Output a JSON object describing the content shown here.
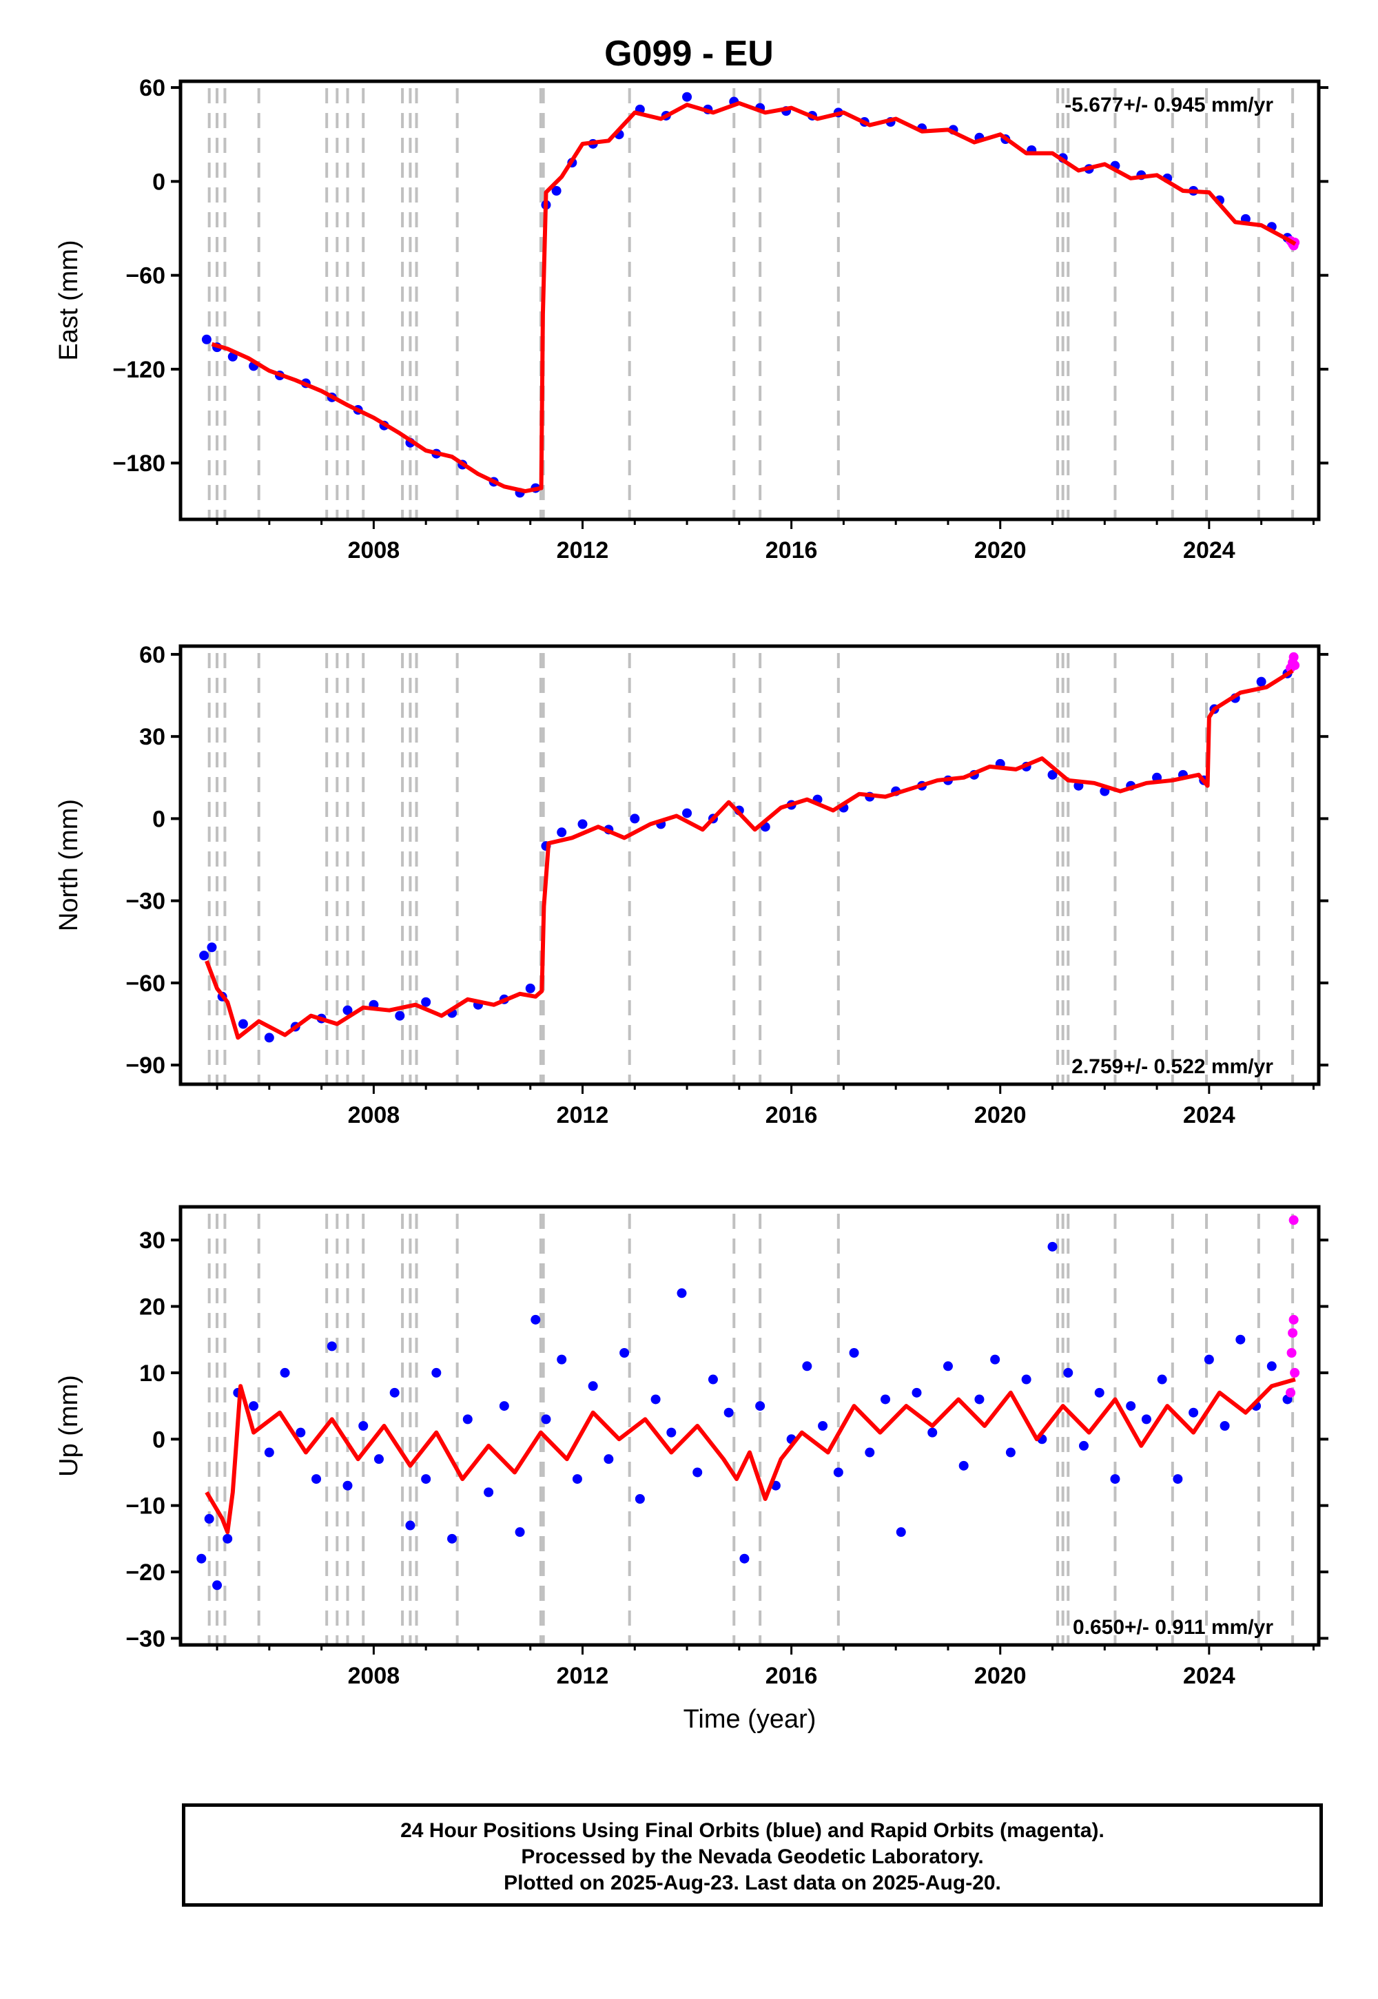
{
  "figure": {
    "title": "G099 - EU",
    "footer_lines": [
      "24 Hour Positions Using Final Orbits (blue) and Rapid Orbits (magenta).",
      "Processed by the Nevada Geodetic Laboratory.",
      "Plotted on 2025-Aug-23. Last data on 2025-Aug-20."
    ],
    "colors": {
      "final_orbits": "#0000ff",
      "rapid_orbits": "#ff00ff",
      "model_fit": "#ff0000",
      "event_lines": "#c0c0c0"
    }
  },
  "chart_data": [
    {
      "type": "scatter",
      "panel": "east",
      "ylabel": "East (mm)",
      "xlim": [
        2004.3,
        2026.1
      ],
      "ylim": [
        -216,
        64
      ],
      "yticks": [
        60,
        0,
        -60,
        -120,
        -180
      ],
      "xticks": [
        2008,
        2012,
        2016,
        2020,
        2024
      ],
      "rate_label": "-5.677+/- 0.945 mm/yr",
      "fit_series": {
        "x": [
          2004.9,
          2005.2,
          2005.6,
          2006.0,
          2006.5,
          2007.0,
          2007.5,
          2008.0,
          2008.5,
          2009.0,
          2009.5,
          2010.0,
          2010.5,
          2010.9,
          2011.21,
          2011.24,
          2011.3,
          2011.6,
          2012.0,
          2012.5,
          2013.0,
          2013.5,
          2014.0,
          2014.5,
          2015.0,
          2015.5,
          2016.0,
          2016.5,
          2017.0,
          2017.5,
          2018.0,
          2018.5,
          2019.0,
          2019.5,
          2020.0,
          2020.5,
          2021.0,
          2021.5,
          2022.0,
          2022.5,
          2023.0,
          2023.5,
          2024.0,
          2024.5,
          2025.0,
          2025.5,
          2025.65
        ],
        "y": [
          -104,
          -107,
          -113,
          -121,
          -127,
          -134,
          -143,
          -151,
          -161,
          -172,
          -176,
          -187,
          -195,
          -198,
          -196,
          -85,
          -7,
          3,
          24,
          26,
          44,
          40,
          49,
          44,
          50,
          44,
          47,
          40,
          44,
          36,
          40,
          32,
          33,
          25,
          30,
          18,
          18,
          7,
          11,
          2,
          4,
          -6,
          -7,
          -26,
          -28,
          -37,
          -40
        ]
      },
      "final_series": {
        "x": [
          2004.8,
          2005.0,
          2005.3,
          2005.7,
          2006.2,
          2006.7,
          2007.2,
          2007.7,
          2008.2,
          2008.7,
          2009.2,
          2009.7,
          2010.3,
          2010.8,
          2011.1,
          2011.3,
          2011.5,
          2011.8,
          2012.2,
          2012.7,
          2013.1,
          2013.6,
          2014.0,
          2014.4,
          2014.9,
          2015.4,
          2015.9,
          2016.4,
          2016.9,
          2017.4,
          2017.9,
          2018.5,
          2019.1,
          2019.6,
          2020.1,
          2020.6,
          2021.2,
          2021.7,
          2022.2,
          2022.7,
          2023.2,
          2023.7,
          2024.2,
          2024.7,
          2025.2,
          2025.5
        ],
        "y": [
          -101,
          -106,
          -112,
          -118,
          -124,
          -129,
          -138,
          -146,
          -156,
          -167,
          -174,
          -181,
          -192,
          -199,
          -196,
          -15,
          -6,
          12,
          24,
          30,
          46,
          42,
          54,
          46,
          51,
          47,
          45,
          42,
          44,
          38,
          38,
          34,
          33,
          28,
          27,
          20,
          15,
          8,
          10,
          4,
          2,
          -6,
          -12,
          -24,
          -29,
          -36
        ]
      },
      "rapid_series": {
        "x": [
          2025.56,
          2025.6,
          2025.62,
          2025.64
        ],
        "y": [
          -38,
          -40,
          -41,
          -39
        ]
      }
    },
    {
      "type": "scatter",
      "panel": "north",
      "ylabel": "North (mm)",
      "xlim": [
        2004.3,
        2026.1
      ],
      "ylim": [
        -97,
        63
      ],
      "yticks": [
        60,
        30,
        0,
        -30,
        -60,
        -90
      ],
      "xticks": [
        2008,
        2012,
        2016,
        2020,
        2024
      ],
      "rate_label": "2.759+/- 0.522 mm/yr",
      "fit_series": {
        "x": [
          2004.8,
          2005.0,
          2005.2,
          2005.4,
          2005.8,
          2006.3,
          2006.8,
          2007.3,
          2007.8,
          2008.3,
          2008.8,
          2009.3,
          2009.8,
          2010.3,
          2010.8,
          2011.1,
          2011.22,
          2011.26,
          2011.35,
          2011.8,
          2012.3,
          2012.8,
          2013.3,
          2013.8,
          2014.3,
          2014.8,
          2015.3,
          2015.8,
          2016.3,
          2016.8,
          2017.3,
          2017.8,
          2018.3,
          2018.8,
          2019.3,
          2019.8,
          2020.3,
          2020.8,
          2021.3,
          2021.8,
          2022.3,
          2022.8,
          2023.3,
          2023.8,
          2023.97,
          2024.0,
          2024.1,
          2024.6,
          2025.1,
          2025.6
        ],
        "y": [
          -52,
          -62,
          -67,
          -80,
          -74,
          -79,
          -72,
          -75,
          -69,
          -70,
          -68,
          -72,
          -66,
          -68,
          -64,
          -65,
          -63,
          -32,
          -9,
          -7,
          -3,
          -7,
          -2,
          1,
          -4,
          6,
          -4,
          4,
          7,
          3,
          9,
          8,
          11,
          14,
          15,
          19,
          18,
          22,
          14,
          13,
          10,
          13,
          14,
          16,
          12,
          37,
          40,
          46,
          48,
          54
        ]
      },
      "final_series": {
        "x": [
          2004.75,
          2004.9,
          2005.1,
          2005.5,
          2006.0,
          2006.5,
          2007.0,
          2007.5,
          2008.0,
          2008.5,
          2009.0,
          2009.5,
          2010.0,
          2010.5,
          2011.0,
          2011.3,
          2011.6,
          2012.0,
          2012.5,
          2013.0,
          2013.5,
          2014.0,
          2014.5,
          2015.0,
          2015.5,
          2016.0,
          2016.5,
          2017.0,
          2017.5,
          2018.0,
          2018.5,
          2019.0,
          2019.5,
          2020.0,
          2020.5,
          2021.0,
          2021.5,
          2022.0,
          2022.5,
          2023.0,
          2023.5,
          2023.9,
          2024.1,
          2024.5,
          2025.0,
          2025.5
        ],
        "y": [
          -50,
          -47,
          -65,
          -75,
          -80,
          -76,
          -73,
          -70,
          -68,
          -72,
          -67,
          -71,
          -68,
          -66,
          -62,
          -10,
          -5,
          -2,
          -4,
          0,
          -2,
          2,
          0,
          3,
          -3,
          5,
          7,
          4,
          8,
          10,
          12,
          14,
          16,
          20,
          19,
          16,
          12,
          10,
          12,
          15,
          16,
          14,
          40,
          44,
          50,
          53
        ]
      },
      "rapid_series": {
        "x": [
          2025.56,
          2025.6,
          2025.62,
          2025.64
        ],
        "y": [
          55,
          57,
          59,
          56
        ]
      }
    },
    {
      "type": "scatter",
      "panel": "up",
      "ylabel": "Up (mm)",
      "xlabel": "Time (year)",
      "xlim": [
        2004.3,
        2026.1
      ],
      "ylim": [
        -31,
        35
      ],
      "yticks": [
        30,
        20,
        10,
        0,
        -10,
        -20,
        -30
      ],
      "xticks": [
        2008,
        2012,
        2016,
        2020,
        2024
      ],
      "rate_label": "0.650+/- 0.911 mm/yr",
      "fit_series": {
        "x": [
          2004.8,
          2005.1,
          2005.2,
          2005.3,
          2005.45,
          2005.7,
          2006.2,
          2006.7,
          2007.2,
          2007.7,
          2008.2,
          2008.7,
          2009.2,
          2009.7,
          2010.2,
          2010.7,
          2011.2,
          2011.7,
          2012.2,
          2012.7,
          2013.2,
          2013.7,
          2014.2,
          2014.7,
          2014.95,
          2015.2,
          2015.5,
          2015.8,
          2016.2,
          2016.7,
          2017.2,
          2017.7,
          2018.2,
          2018.7,
          2019.2,
          2019.7,
          2020.2,
          2020.7,
          2021.2,
          2021.7,
          2022.2,
          2022.7,
          2023.2,
          2023.7,
          2024.2,
          2024.7,
          2025.2,
          2025.65
        ],
        "y": [
          -8,
          -12,
          -14,
          -8,
          8,
          1,
          4,
          -2,
          3,
          -3,
          2,
          -4,
          1,
          -6,
          -1,
          -5,
          1,
          -3,
          4,
          0,
          3,
          -2,
          2,
          -3,
          -6,
          -2,
          -9,
          -3,
          1,
          -2,
          5,
          1,
          5,
          2,
          6,
          2,
          7,
          0,
          5,
          1,
          6,
          -1,
          5,
          1,
          7,
          4,
          8,
          9
        ]
      },
      "final_series": {
        "x": [
          2004.7,
          2004.85,
          2005.0,
          2005.2,
          2005.4,
          2005.7,
          2006.0,
          2006.3,
          2006.6,
          2006.9,
          2007.2,
          2007.5,
          2007.8,
          2008.1,
          2008.4,
          2008.7,
          2009.0,
          2009.2,
          2009.5,
          2009.8,
          2010.2,
          2010.5,
          2010.8,
          2011.1,
          2011.3,
          2011.6,
          2011.9,
          2012.2,
          2012.5,
          2012.8,
          2013.1,
          2013.4,
          2013.7,
          2013.9,
          2014.2,
          2014.5,
          2014.8,
          2015.1,
          2015.4,
          2015.7,
          2016.0,
          2016.3,
          2016.6,
          2016.9,
          2017.2,
          2017.5,
          2017.8,
          2018.1,
          2018.4,
          2018.7,
          2019.0,
          2019.3,
          2019.6,
          2019.9,
          2020.2,
          2020.5,
          2020.8,
          2021.0,
          2021.3,
          2021.6,
          2021.9,
          2022.2,
          2022.5,
          2022.8,
          2023.1,
          2023.4,
          2023.7,
          2024.0,
          2024.3,
          2024.6,
          2024.9,
          2025.2,
          2025.5
        ],
        "y": [
          -18,
          -12,
          -22,
          -15,
          7,
          5,
          -2,
          10,
          1,
          -6,
          14,
          -7,
          2,
          -3,
          7,
          -13,
          -6,
          10,
          -15,
          3,
          -8,
          5,
          -14,
          18,
          3,
          12,
          -6,
          8,
          -3,
          13,
          -9,
          6,
          1,
          22,
          -5,
          9,
          4,
          -18,
          5,
          -7,
          0,
          11,
          2,
          -5,
          13,
          -2,
          6,
          -14,
          7,
          1,
          11,
          -4,
          6,
          12,
          -2,
          9,
          0,
          29,
          10,
          -1,
          7,
          -6,
          5,
          3,
          9,
          -6,
          4,
          12,
          2,
          15,
          5,
          11,
          6
        ]
      },
      "rapid_series": {
        "x": [
          2025.56,
          2025.58,
          2025.6,
          2025.62,
          2025.64,
          2025.62
        ],
        "y": [
          7,
          13,
          16,
          18,
          10,
          33
        ]
      }
    }
  ],
  "event_lines": [
    2004.85,
    2005.0,
    2005.15,
    2005.8,
    2007.1,
    2007.3,
    2007.5,
    2007.8,
    2008.55,
    2008.7,
    2008.82,
    2009.6,
    2011.2,
    2011.25,
    2012.9,
    2014.9,
    2015.4,
    2016.9,
    2021.1,
    2021.2,
    2021.3,
    2022.2,
    2023.3,
    2023.95,
    2024.95,
    2025.6
  ]
}
